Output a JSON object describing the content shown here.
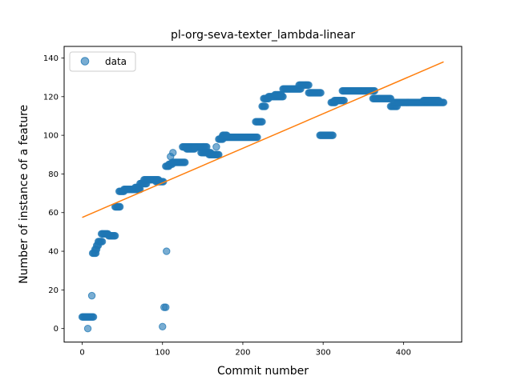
{
  "chart_data": {
    "type": "scatter",
    "title": "pl-org-seva-texter_lambda-linear",
    "xlabel": "Commit number",
    "ylabel": "Number of instance of a feature",
    "xlim": [
      -22.5,
      472.5
    ],
    "ylim": [
      -7,
      146
    ],
    "xticks": [
      0,
      100,
      200,
      300,
      400
    ],
    "yticks": [
      0,
      20,
      40,
      60,
      80,
      100,
      120,
      140
    ],
    "grid": false,
    "legend": {
      "placement": "top-left",
      "entries": [
        "data"
      ]
    },
    "colors": {
      "data": "#1f77b4",
      "fit": "#ff7f0e"
    },
    "segments": [
      {
        "x_from": 0,
        "x_to": 14,
        "y": 6
      },
      {
        "x_from": 13,
        "x_to": 17,
        "y": 39
      },
      {
        "x_from": 16,
        "x_to": 18,
        "y": 41
      },
      {
        "x_from": 18,
        "x_to": 20,
        "y": 43
      },
      {
        "x_from": 20,
        "x_to": 25,
        "y": 45
      },
      {
        "x_from": 24,
        "x_to": 32,
        "y": 49
      },
      {
        "x_from": 33,
        "x_to": 41,
        "y": 48
      },
      {
        "x_from": 41,
        "x_to": 47,
        "y": 63
      },
      {
        "x_from": 46,
        "x_to": 52,
        "y": 71
      },
      {
        "x_from": 52,
        "x_to": 72,
        "y": 72
      },
      {
        "x_from": 66,
        "x_to": 71,
        "y": 73
      },
      {
        "x_from": 72,
        "x_to": 80,
        "y": 75
      },
      {
        "x_from": 77,
        "x_to": 95,
        "y": 77
      },
      {
        "x_from": 92,
        "x_to": 101,
        "y": 76
      },
      {
        "x_from": 104,
        "x_to": 108,
        "y": 84
      },
      {
        "x_from": 108,
        "x_to": 112,
        "y": 85
      },
      {
        "x_from": 112,
        "x_to": 128,
        "y": 86
      },
      {
        "x_from": 125,
        "x_to": 155,
        "y": 94
      },
      {
        "x_from": 130,
        "x_to": 140,
        "y": 93
      },
      {
        "x_from": 148,
        "x_to": 160,
        "y": 91
      },
      {
        "x_from": 158,
        "x_to": 170,
        "y": 90
      },
      {
        "x_from": 170,
        "x_to": 175,
        "y": 98
      },
      {
        "x_from": 174,
        "x_to": 218,
        "y": 99
      },
      {
        "x_from": 175,
        "x_to": 180,
        "y": 100
      },
      {
        "x_from": 216,
        "x_to": 224,
        "y": 107
      },
      {
        "x_from": 224,
        "x_to": 228,
        "y": 115
      },
      {
        "x_from": 226,
        "x_to": 232,
        "y": 119
      },
      {
        "x_from": 232,
        "x_to": 250,
        "y": 120
      },
      {
        "x_from": 240,
        "x_to": 248,
        "y": 121
      },
      {
        "x_from": 250,
        "x_to": 272,
        "y": 124
      },
      {
        "x_from": 270,
        "x_to": 282,
        "y": 126
      },
      {
        "x_from": 282,
        "x_to": 297,
        "y": 122
      },
      {
        "x_from": 296,
        "x_to": 312,
        "y": 100
      },
      {
        "x_from": 310,
        "x_to": 315,
        "y": 117
      },
      {
        "x_from": 314,
        "x_to": 326,
        "y": 118
      },
      {
        "x_from": 324,
        "x_to": 364,
        "y": 123
      },
      {
        "x_from": 362,
        "x_to": 384,
        "y": 119
      },
      {
        "x_from": 384,
        "x_to": 392,
        "y": 115
      },
      {
        "x_from": 388,
        "x_to": 450,
        "y": 117
      },
      {
        "x_from": 425,
        "x_to": 444,
        "y": 118
      }
    ],
    "points": [
      [
        7,
        0
      ],
      [
        12,
        17
      ],
      [
        100,
        1
      ],
      [
        102,
        11
      ],
      [
        104,
        11
      ],
      [
        105,
        40
      ],
      [
        110,
        89
      ],
      [
        113,
        91
      ],
      [
        167,
        94
      ]
    ],
    "fit_line": {
      "x": [
        0,
        450
      ],
      "y": [
        57.5,
        138
      ]
    }
  }
}
